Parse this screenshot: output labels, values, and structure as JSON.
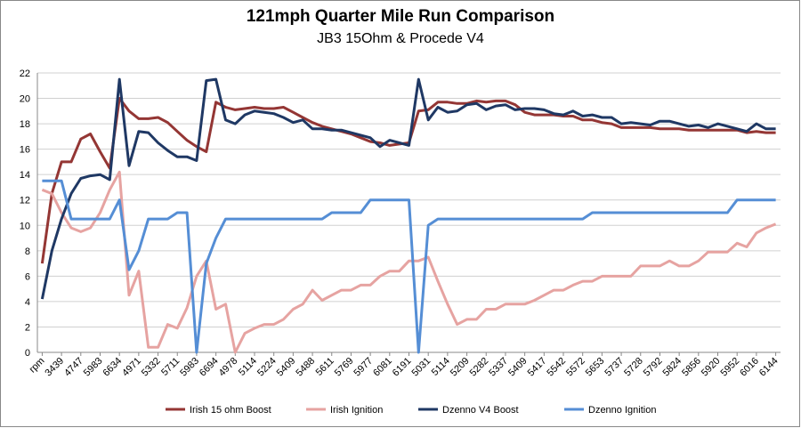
{
  "chart_data": {
    "type": "line",
    "title": "121mph Quarter Mile Run Comparison",
    "subtitle": "JB3 15Ohm & Procede V4",
    "categories": [
      "rpm",
      null,
      "3439",
      null,
      "4747",
      null,
      "5983",
      null,
      "6634",
      null,
      "4971",
      null,
      "5332",
      null,
      "5711",
      null,
      "5983",
      null,
      "6694",
      null,
      "4978",
      null,
      "5114",
      null,
      "5224",
      null,
      "5409",
      null,
      "5488",
      null,
      "5611",
      null,
      "5769",
      null,
      "5977",
      null,
      "6081",
      null,
      "6191",
      null,
      "5031",
      null,
      "5114",
      null,
      "5209",
      null,
      "5282",
      null,
      "5337",
      null,
      "5409",
      null,
      "5417",
      null,
      "5542",
      null,
      "5572",
      null,
      "5653",
      null,
      "5737",
      null,
      "5728",
      null,
      "5792",
      null,
      "5824",
      null,
      "5856",
      null,
      "5920",
      null,
      "5952",
      null,
      "6016",
      null,
      "6144"
    ],
    "series": [
      {
        "name": "Irish 15 ohm Boost",
        "color": "#943634",
        "values": [
          7,
          12.5,
          15,
          15,
          16.8,
          17.2,
          15.8,
          14.5,
          20,
          19,
          18.4,
          18.4,
          18.5,
          18.1,
          17.4,
          16.7,
          16.2,
          15.8,
          19.7,
          19.3,
          19.1,
          19.2,
          19.3,
          19.2,
          19.2,
          19.3,
          18.9,
          18.5,
          18.1,
          17.8,
          17.6,
          17.4,
          17.2,
          16.9,
          16.6,
          16.5,
          16.3,
          16.4,
          16.5,
          19,
          19.1,
          19.7,
          19.7,
          19.6,
          19.6,
          19.8,
          19.7,
          19.8,
          19.8,
          19.5,
          18.9,
          18.7,
          18.7,
          18.7,
          18.6,
          18.6,
          18.3,
          18.3,
          18.1,
          18,
          17.7,
          17.7,
          17.7,
          17.7,
          17.6,
          17.6,
          17.6,
          17.5,
          17.5,
          17.5,
          17.5,
          17.5,
          17.5,
          17.3,
          17.4,
          17.3,
          17.3
        ]
      },
      {
        "name": "Irish Ignition",
        "color": "#e6a3a1",
        "values": [
          12.8,
          12.5,
          11,
          9.8,
          9.5,
          9.8,
          11,
          12.8,
          14.2,
          4.5,
          6.4,
          0.4,
          0.4,
          2.2,
          1.9,
          3.5,
          6,
          7.2,
          3.4,
          3.8,
          0,
          1.5,
          1.9,
          2.2,
          2.2,
          2.6,
          3.4,
          3.8,
          4.9,
          4.1,
          4.5,
          4.9,
          4.9,
          5.3,
          5.3,
          6,
          6.4,
          6.4,
          7.2,
          7.2,
          7.5,
          5.6,
          3.8,
          2.2,
          2.6,
          2.6,
          3.4,
          3.4,
          3.8,
          3.8,
          3.8,
          4.1,
          4.5,
          4.9,
          4.9,
          5.3,
          5.6,
          5.6,
          6,
          6,
          6,
          6,
          6.8,
          6.8,
          6.8,
          7.2,
          6.8,
          6.8,
          7.2,
          7.9,
          7.9,
          7.9,
          8.6,
          8.3,
          9.4,
          9.8,
          10.1
        ]
      },
      {
        "name": "Dzenno V4 Boost",
        "color": "#1f3864",
        "values": [
          4.2,
          8,
          10.5,
          12.5,
          13.7,
          13.9,
          14,
          13.6,
          21.5,
          14.7,
          17.4,
          17.3,
          16.5,
          15.9,
          15.4,
          15.4,
          15.1,
          21.4,
          21.5,
          18.3,
          18,
          18.7,
          19,
          18.9,
          18.8,
          18.5,
          18.1,
          18.3,
          17.6,
          17.6,
          17.5,
          17.5,
          17.3,
          17.1,
          16.9,
          16.2,
          16.7,
          16.5,
          16.3,
          21.5,
          18.3,
          19.3,
          18.9,
          19,
          19.5,
          19.6,
          19.1,
          19.4,
          19.5,
          19.1,
          19.2,
          19.2,
          19.1,
          18.8,
          18.7,
          19,
          18.6,
          18.7,
          18.5,
          18.5,
          18,
          18.1,
          18,
          17.9,
          18.2,
          18.2,
          18,
          17.8,
          17.9,
          17.7,
          18,
          17.8,
          17.6,
          17.4,
          18,
          17.6,
          17.6
        ]
      },
      {
        "name": "Dzenno Ignition",
        "color": "#558ed5",
        "values": [
          13.5,
          13.5,
          13.5,
          10.5,
          10.5,
          10.5,
          10.5,
          10.5,
          12,
          6.5,
          8,
          10.5,
          10.5,
          10.5,
          11,
          11,
          0,
          7,
          9,
          10.5,
          10.5,
          10.5,
          10.5,
          10.5,
          10.5,
          10.5,
          10.5,
          10.5,
          10.5,
          10.5,
          11,
          11,
          11,
          11,
          12,
          12,
          12,
          12,
          12,
          0,
          10,
          10.5,
          10.5,
          10.5,
          10.5,
          10.5,
          10.5,
          10.5,
          10.5,
          10.5,
          10.5,
          10.5,
          10.5,
          10.5,
          10.5,
          10.5,
          10.5,
          11,
          11,
          11,
          11,
          11,
          11,
          11,
          11,
          11,
          11,
          11,
          11,
          11,
          11,
          11,
          12,
          12,
          12,
          12,
          12
        ]
      }
    ],
    "ylim": [
      0,
      22
    ],
    "yticks": [
      0,
      2,
      4,
      6,
      8,
      10,
      12,
      14,
      16,
      18,
      20,
      22
    ],
    "grid": true,
    "legend": "bottom"
  }
}
